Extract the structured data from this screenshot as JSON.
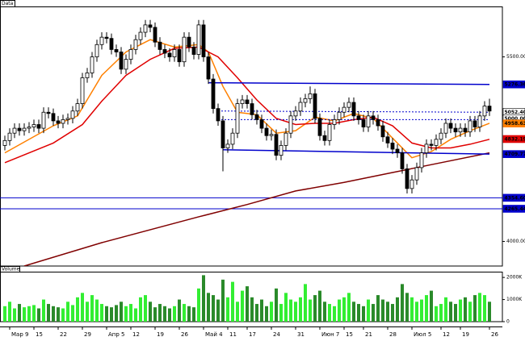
{
  "chart_data": [
    {
      "type": "candlestick",
      "title": "Data",
      "categories": [
        null,
        "Мар 9",
        null,
        null,
        null,
        null,
        "15",
        null,
        null,
        null,
        null,
        "22",
        null,
        null,
        null,
        null,
        "29",
        null,
        null,
        null,
        null,
        "Апр 5",
        null,
        null,
        null,
        null,
        "12",
        null,
        null,
        null,
        null,
        "19",
        null,
        null,
        null,
        null,
        "26",
        null,
        null,
        null,
        null,
        "Май 4",
        null,
        null,
        null,
        null,
        "11",
        null,
        null,
        null,
        "17",
        null,
        null,
        null,
        null,
        "24",
        null,
        null,
        null,
        null,
        "31",
        null,
        null,
        null,
        null,
        "Июн 7",
        null,
        null,
        null,
        null,
        "15",
        null,
        null,
        null,
        "21",
        null,
        null,
        null,
        null,
        "28",
        null,
        null,
        null,
        null,
        "Июл 5",
        null,
        null,
        null,
        null,
        null,
        "12",
        null,
        null,
        null,
        "19",
        null,
        null,
        null,
        null,
        null,
        "26"
      ],
      "open": [
        4780,
        4820,
        4880,
        4920,
        4900,
        4920,
        4930,
        4950,
        4920,
        5050,
        5040,
        4980,
        4960,
        4990,
        5000,
        5060,
        5120,
        5330,
        5370,
        5500,
        5600,
        5660,
        5650,
        5560,
        5540,
        5400,
        5480,
        5560,
        5640,
        5700,
        5760,
        5740,
        5620,
        5560,
        5530,
        5500,
        5560,
        5460,
        5660,
        5580,
        5520,
        5760,
        5500,
        5320,
        5080,
        4980,
        4760,
        4790,
        4880,
        5120,
        5150,
        5120,
        5030,
        4990,
        4920,
        4860,
        4870,
        4700,
        4780,
        4880,
        5020,
        5060,
        5130,
        5160,
        5200,
        5000,
        4860,
        4820,
        4950,
        4990,
        5050,
        5090,
        5130,
        5020,
        4990,
        4930,
        5020,
        4990,
        4940,
        4850,
        4800,
        4750,
        4720,
        4590,
        4430,
        4500,
        4600,
        4720,
        4790,
        4780,
        4830,
        4880,
        4960,
        4920,
        4890,
        4920,
        4890,
        4980,
        4930,
        5020,
        5100
      ],
      "high": [
        4860,
        4920,
        4960,
        4960,
        4960,
        4970,
        4990,
        4990,
        5090,
        5090,
        5080,
        5020,
        5030,
        5040,
        5100,
        5160,
        5370,
        5410,
        5540,
        5640,
        5700,
        5700,
        5690,
        5600,
        5580,
        5520,
        5600,
        5680,
        5740,
        5800,
        5800,
        5780,
        5660,
        5600,
        5570,
        5600,
        5600,
        5700,
        5700,
        5620,
        5800,
        5800,
        5540,
        5360,
        5120,
        5020,
        4830,
        4920,
        5160,
        5190,
        5190,
        5160,
        5070,
        5030,
        4960,
        4910,
        4910,
        4820,
        4920,
        5060,
        5100,
        5170,
        5200,
        5260,
        5240,
        5040,
        4900,
        4990,
        5030,
        5090,
        5130,
        5170,
        5170,
        5060,
        5030,
        5060,
        5060,
        5030,
        4980,
        4890,
        4840,
        4790,
        4760,
        4630,
        4540,
        4640,
        4760,
        4830,
        4830,
        4870,
        4920,
        5000,
        5000,
        4960,
        4960,
        4960,
        5020,
        5020,
        5060,
        5140,
        5160
      ],
      "low": [
        4740,
        4780,
        4840,
        4860,
        4860,
        4880,
        4890,
        4880,
        4880,
        5000,
        4940,
        4920,
        4920,
        4950,
        4960,
        5020,
        5080,
        5290,
        5330,
        5460,
        5560,
        5610,
        5520,
        5500,
        5360,
        5360,
        5440,
        5520,
        5600,
        5660,
        5700,
        5580,
        5520,
        5490,
        5460,
        5460,
        5420,
        5420,
        5540,
        5480,
        5480,
        5460,
        5280,
        5040,
        4940,
        4570,
        4720,
        4750,
        4840,
        5080,
        5080,
        4990,
        4950,
        4880,
        4820,
        4820,
        4660,
        4660,
        4740,
        4840,
        4980,
        5020,
        5090,
        5120,
        4960,
        4820,
        4780,
        4780,
        4910,
        4950,
        5010,
        5050,
        4980,
        4950,
        4890,
        4890,
        4950,
        4900,
        4810,
        4760,
        4710,
        4680,
        4550,
        4390,
        4390,
        4460,
        4560,
        4680,
        4740,
        4740,
        4790,
        4840,
        4880,
        4850,
        4850,
        4850,
        4850,
        4890,
        4890,
        4980,
        5020
      ],
      "close": [
        4820,
        4880,
        4920,
        4900,
        4920,
        4930,
        4950,
        4920,
        5050,
        5040,
        4980,
        4960,
        4990,
        5000,
        5060,
        5120,
        5330,
        5370,
        5500,
        5600,
        5660,
        5650,
        5560,
        5540,
        5400,
        5480,
        5560,
        5640,
        5700,
        5760,
        5740,
        5620,
        5560,
        5530,
        5500,
        5560,
        5460,
        5660,
        5580,
        5520,
        5760,
        5500,
        5320,
        5080,
        4980,
        4760,
        4790,
        4880,
        5120,
        5150,
        5120,
        5030,
        4990,
        4920,
        4860,
        4870,
        4700,
        4780,
        4880,
        5020,
        5060,
        5130,
        5160,
        5200,
        5000,
        4860,
        4820,
        4950,
        4990,
        5050,
        5090,
        5130,
        5020,
        4990,
        4930,
        5020,
        4990,
        4940,
        4850,
        4800,
        4750,
        4720,
        4590,
        4430,
        4500,
        4600,
        4720,
        4790,
        4780,
        4830,
        4880,
        4960,
        4920,
        4890,
        4920,
        4890,
        4980,
        4930,
        5020,
        5100,
        5060
      ],
      "up_color": "#ffffff",
      "down_color": "#000000",
      "ylim": [
        3800,
        5910
      ],
      "yticks": [
        {
          "value": 4000,
          "label": "4000.00"
        },
        {
          "value": 5500,
          "label": "5500.00"
        }
      ],
      "lines": [
        {
          "color": "#ff8000",
          "dash": false,
          "x": [
            0,
            10,
            15,
            20,
            25,
            30,
            35,
            40,
            42,
            45,
            48,
            52,
            56,
            60,
            64,
            68,
            72,
            76,
            80,
            84,
            88,
            92,
            96,
            100
          ],
          "values": [
            4720,
            4940,
            5020,
            5350,
            5540,
            5640,
            5580,
            5600,
            5540,
            5260,
            5050,
            5030,
            4880,
            4900,
            5010,
            4980,
            5040,
            5000,
            4840,
            4680,
            4730,
            4830,
            4900,
            4960
          ]
        },
        {
          "color": "#e00000",
          "dash": false,
          "x": [
            0,
            10,
            16,
            20,
            25,
            30,
            35,
            40,
            44,
            48,
            52,
            56,
            60,
            64,
            68,
            72,
            76,
            80,
            84,
            88,
            92,
            96,
            100
          ],
          "values": [
            4640,
            4800,
            4950,
            5140,
            5350,
            5480,
            5570,
            5580,
            5500,
            5330,
            5150,
            5000,
            4950,
            4960,
            4960,
            4990,
            5010,
            4940,
            4800,
            4760,
            4760,
            4790,
            4830
          ]
        },
        {
          "color": "#800000",
          "dash": false,
          "x": [
            4,
            20,
            40,
            50,
            60,
            70,
            80,
            90,
            100
          ],
          "values": [
            3800,
            3990,
            4200,
            4300,
            4410,
            4480,
            4560,
            4640,
            4720
          ]
        },
        {
          "color": "#0000cc",
          "dash": false,
          "x": [
            42,
            100
          ],
          "values": [
            5290,
            5276.36
          ]
        },
        {
          "color": "#0000cc",
          "dash": false,
          "x": [
            45,
            100
          ],
          "values": [
            4745,
            4709.77
          ]
        },
        {
          "color": "#0000cc",
          "dash": true,
          "x": [
            44,
            100
          ],
          "values": [
            5060,
            5050
          ]
        },
        {
          "color": "#0000cc",
          "dash": true,
          "x": [
            44,
            100
          ],
          "values": [
            4990,
            4990
          ]
        }
      ],
      "levels": [
        {
          "value": 4354.6,
          "color": "#0000cc"
        },
        {
          "value": 4265.44,
          "color": "#0000cc"
        }
      ],
      "price_tags": [
        {
          "value": 5276.36,
          "label": "5276.36",
          "color": "#0000cc",
          "text_color": "#ffffff"
        },
        {
          "value": 5052.4,
          "label": "5052.40",
          "color": "#ffffff",
          "text_color": "#000000"
        },
        {
          "value": 5000,
          "label": "5000.00",
          "color": "#ffffff",
          "text_color": "#000000"
        },
        {
          "value": 4958.63,
          "label": "4958.63",
          "color": "#ff8000",
          "text_color": "#ffffff"
        },
        {
          "value": 4832.19,
          "label": "4832.19",
          "color": "#e00000",
          "text_color": "#ffffff"
        },
        {
          "value": 4709.77,
          "label": "4709.77",
          "color": "#0000cc",
          "text_color": "#ffffff"
        },
        {
          "value": 4354.6,
          "label": "4354.60",
          "color": "#0000cc",
          "text_color": "#ffffff"
        },
        {
          "value": 4265.44,
          "label": "4265.44",
          "color": "#0000cc",
          "text_color": "#ffffff"
        }
      ]
    },
    {
      "type": "bar",
      "title": "Volume",
      "values": [
        700,
        900,
        600,
        800,
        650,
        700,
        750,
        600,
        1000,
        800,
        700,
        650,
        600,
        900,
        750,
        1100,
        1300,
        900,
        1200,
        1000,
        800,
        700,
        650,
        750,
        900,
        700,
        800,
        600,
        1100,
        1200,
        900,
        650,
        800,
        700,
        600,
        700,
        1000,
        800,
        700,
        650,
        1500,
        2100,
        1300,
        1200,
        1000,
        1900,
        1100,
        1800,
        900,
        1400,
        1600,
        1100,
        800,
        1000,
        700,
        900,
        1500,
        800,
        1300,
        1000,
        900,
        1100,
        1700,
        1000,
        1200,
        1400,
        900,
        800,
        700,
        1000,
        1100,
        1300,
        900,
        800,
        700,
        1000,
        800,
        1200,
        1000,
        900,
        800,
        1100,
        1700,
        1300,
        1100,
        900,
        1000,
        1200,
        1400,
        700,
        800,
        1100,
        900,
        800,
        1000,
        1100,
        900,
        1200,
        1300,
        1200,
        900
      ],
      "up_color": "#33ee33",
      "down_color": "#2a8a2a",
      "ylim": [
        0,
        2260
      ],
      "yticks": [
        {
          "value": 0,
          "label": "0"
        },
        {
          "value": 1000,
          "label": "1000K"
        },
        {
          "value": 2000,
          "label": "2000K"
        }
      ]
    }
  ]
}
